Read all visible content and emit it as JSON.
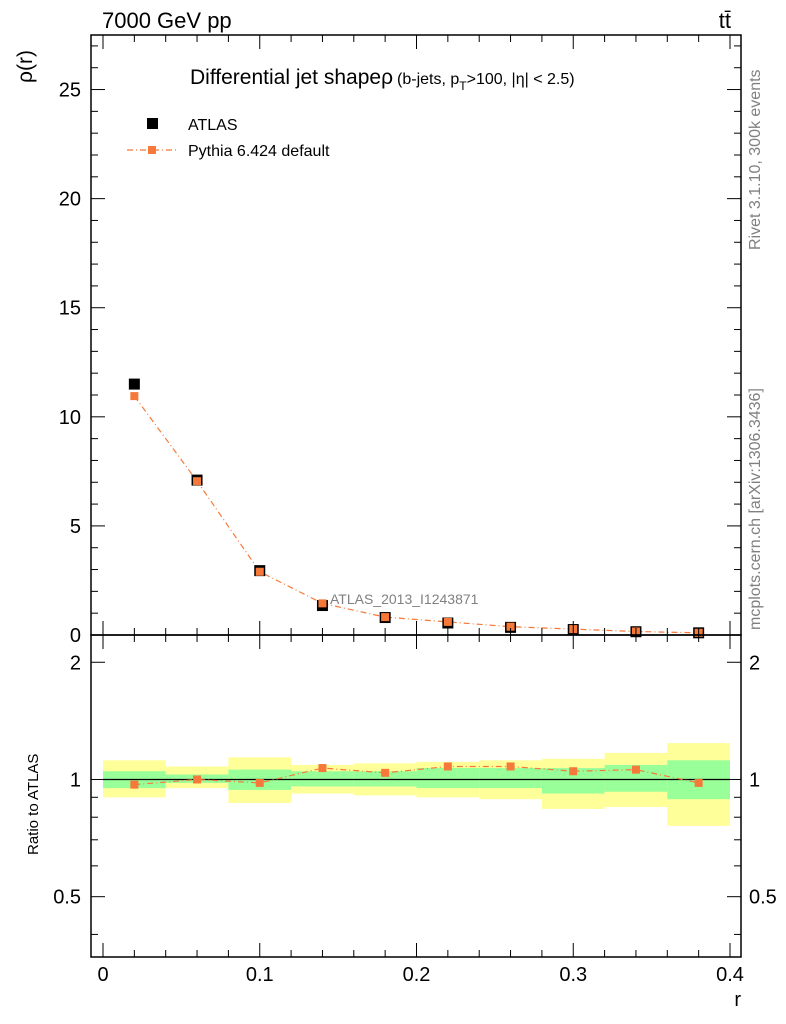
{
  "header": {
    "beam_label": "7000 GeV pp",
    "process_label": "tt̄"
  },
  "side_labels": {
    "rivet": "Rivet 3.1.10,  300k events",
    "mcplots": "mcplots.cern.ch [arXiv:1306.3436]"
  },
  "chart_data": [
    {
      "type": "scatter",
      "title": "Differential jet shape",
      "title_symbol": "ρ",
      "subtitle_pre": "(b-jets, p",
      "subtitle_sub": "T",
      "subtitle_post": ">100, |η| < 2.5)",
      "ylabel": "ρ(r)",
      "analysis_label": "ATLAS_2013_I1243871",
      "xlim": [
        0,
        0.4
      ],
      "ylim": [
        0,
        27.5
      ],
      "yticks": [
        "0",
        "5",
        "10",
        "15",
        "20",
        "25"
      ],
      "legend_position": "top-left",
      "x": [
        0.02,
        0.06,
        0.1,
        0.14,
        0.18,
        0.22,
        0.26,
        0.3,
        0.34,
        0.38
      ],
      "series": [
        {
          "name": "ATLAS",
          "color": "#000000",
          "marker": "square",
          "values": [
            11.5,
            7.1,
            2.95,
            1.35,
            0.8,
            0.55,
            0.35,
            0.25,
            0.15,
            0.1
          ]
        },
        {
          "name": "Pythia 6.424 default",
          "color": "#f6793a",
          "marker": "square",
          "line": "dash-dot",
          "values": [
            10.95,
            7.05,
            2.9,
            1.45,
            0.82,
            0.6,
            0.38,
            0.27,
            0.16,
            0.1
          ]
        }
      ]
    },
    {
      "type": "scatter",
      "ylabel": "Ratio to ATLAS",
      "xlabel": "r",
      "xlim": [
        0,
        0.4
      ],
      "ylim": [
        0.35,
        2.35
      ],
      "yticks": [
        "0.5",
        "1",
        "2"
      ],
      "xticks": [
        "0",
        "0.1",
        "0.2",
        "0.3",
        "0.4"
      ],
      "bins": [
        [
          0.0,
          0.04
        ],
        [
          0.04,
          0.08
        ],
        [
          0.08,
          0.12
        ],
        [
          0.12,
          0.16
        ],
        [
          0.16,
          0.2
        ],
        [
          0.2,
          0.24
        ],
        [
          0.24,
          0.28
        ],
        [
          0.28,
          0.32
        ],
        [
          0.32,
          0.36
        ],
        [
          0.36,
          0.4
        ]
      ],
      "band_inner": [
        [
          0.95,
          1.05
        ],
        [
          0.98,
          1.03
        ],
        [
          0.94,
          1.06
        ],
        [
          0.96,
          1.05
        ],
        [
          0.96,
          1.05
        ],
        [
          0.95,
          1.07
        ],
        [
          0.95,
          1.07
        ],
        [
          0.92,
          1.07
        ],
        [
          0.93,
          1.09
        ],
        [
          0.89,
          1.12
        ]
      ],
      "band_outer": [
        [
          0.9,
          1.12
        ],
        [
          0.95,
          1.08
        ],
        [
          0.87,
          1.14
        ],
        [
          0.92,
          1.09
        ],
        [
          0.91,
          1.1
        ],
        [
          0.9,
          1.11
        ],
        [
          0.89,
          1.12
        ],
        [
          0.84,
          1.13
        ],
        [
          0.85,
          1.17
        ],
        [
          0.76,
          1.24
        ]
      ],
      "series": [
        {
          "name": "Pythia 6.424 default",
          "color": "#f6793a",
          "values": [
            0.97,
            1.0,
            0.98,
            1.07,
            1.04,
            1.08,
            1.08,
            1.05,
            1.06,
            0.98
          ]
        }
      ],
      "colors": {
        "inner_band": "#99ff99",
        "outer_band": "#ffff99"
      }
    }
  ]
}
